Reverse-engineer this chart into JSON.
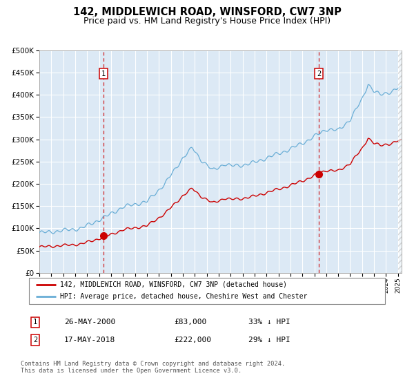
{
  "title": "142, MIDDLEWICH ROAD, WINSFORD, CW7 3NP",
  "subtitle": "Price paid vs. HM Land Registry's House Price Index (HPI)",
  "title_fontsize": 10.5,
  "subtitle_fontsize": 9,
  "background_color": "#dce9f5",
  "hpi_color": "#6aaed6",
  "price_color": "#cc0000",
  "marker_color": "#cc0000",
  "vline_color": "#cc0000",
  "annotation_box_color": "#cc0000",
  "grid_color": "#ffffff",
  "sale1_date_decimal": 2000.38,
  "sale1_price": 83000,
  "sale1_label": "1",
  "sale2_date_decimal": 2018.37,
  "sale2_price": 222000,
  "sale2_label": "2",
  "ylim": [
    0,
    500000
  ],
  "xlim_start": 1995.0,
  "xlim_end": 2025.3,
  "legend_line1": "142, MIDDLEWICH ROAD, WINSFORD, CW7 3NP (detached house)",
  "legend_line2": "HPI: Average price, detached house, Cheshire West and Chester",
  "table_row1_num": "1",
  "table_row1_date": "26-MAY-2000",
  "table_row1_price": "£83,000",
  "table_row1_hpi": "33% ↓ HPI",
  "table_row2_num": "2",
  "table_row2_date": "17-MAY-2018",
  "table_row2_price": "£222,000",
  "table_row2_hpi": "29% ↓ HPI",
  "footer": "Contains HM Land Registry data © Crown copyright and database right 2024.\nThis data is licensed under the Open Government Licence v3.0."
}
